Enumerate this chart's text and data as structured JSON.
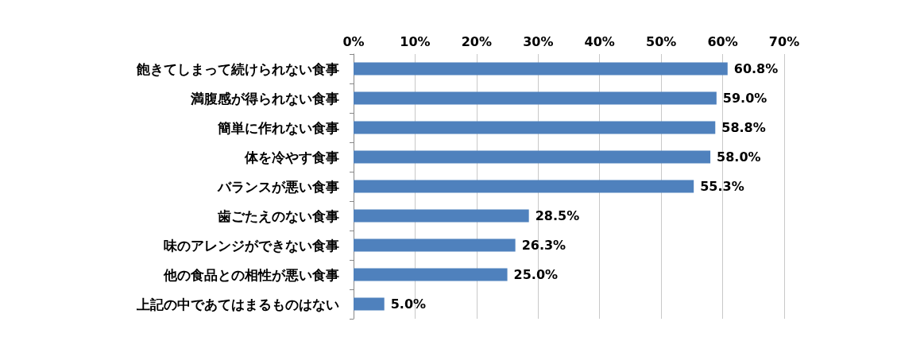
{
  "chart_data": {
    "type": "bar",
    "orientation": "horizontal",
    "categories": [
      "飽きてしまって続けられない食事",
      "満腹感が得られない食事",
      "簡単に作れない食事",
      "体を冷やす食事",
      "バランスが悪い食事",
      "歯ごたえのない食事",
      "味のアレンジができない食事",
      "他の食品との相性が悪い食事",
      "上記の中であてはまるものはない"
    ],
    "values": [
      60.8,
      59.0,
      58.8,
      58.0,
      55.3,
      28.5,
      26.3,
      25.0,
      5.0
    ],
    "value_labels": [
      "60.8%",
      "59.0%",
      "58.8%",
      "58.0%",
      "55.3%",
      "28.5%",
      "26.3%",
      "25.0%",
      "5.0%"
    ],
    "color": "#4f81bd",
    "xlim": [
      0,
      70
    ],
    "xticks": [
      {
        "value": 0,
        "label": "0%"
      },
      {
        "value": 10,
        "label": "10%"
      },
      {
        "value": 20,
        "label": "20%"
      },
      {
        "value": 30,
        "label": "30%"
      },
      {
        "value": 40,
        "label": "40%"
      },
      {
        "value": 50,
        "label": "50%"
      },
      {
        "value": 60,
        "label": "60%"
      },
      {
        "value": 70,
        "label": "70%"
      }
    ],
    "grid": "x"
  }
}
